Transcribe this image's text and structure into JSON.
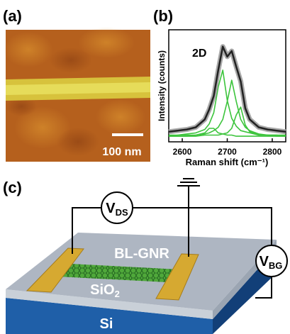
{
  "panel_a": {
    "label": "(a)",
    "scale_bar": "100 nm"
  },
  "chart_data": {
    "type": "line",
    "label": "(b)",
    "annotation": "2D",
    "x_label": "Raman shift (cm⁻¹)",
    "y_label": "Intensity (counts)",
    "x": [
      2570,
      2590,
      2610,
      2630,
      2650,
      2660,
      2670,
      2680,
      2690,
      2700,
      2710,
      2720,
      2730,
      2740,
      2750,
      2770,
      2790,
      2810,
      2830
    ],
    "series": [
      {
        "color": "#222222",
        "values": [
          0.09,
          0.1,
          0.11,
          0.13,
          0.2,
          0.29,
          0.41,
          0.64,
          0.85,
          0.76,
          0.81,
          0.67,
          0.54,
          0.3,
          0.2,
          0.13,
          0.11,
          0.1,
          0.09
        ]
      },
      {
        "color": "#3cc43c",
        "values": [
          0.05,
          0.05,
          0.05,
          0.06,
          0.08,
          0.12,
          0.12,
          0.08,
          0.07,
          0.06,
          0.06,
          0.05,
          0.05,
          0.05,
          0.05,
          0.05,
          0.05,
          0.05,
          0.05
        ]
      },
      {
        "color": "#3cc43c",
        "values": [
          0.06,
          0.06,
          0.07,
          0.08,
          0.11,
          0.16,
          0.26,
          0.49,
          0.64,
          0.37,
          0.21,
          0.14,
          0.1,
          0.09,
          0.08,
          0.06,
          0.06,
          0.06,
          0.06
        ]
      },
      {
        "color": "#3cc43c",
        "values": [
          0.05,
          0.06,
          0.06,
          0.06,
          0.07,
          0.08,
          0.1,
          0.13,
          0.2,
          0.36,
          0.55,
          0.36,
          0.2,
          0.13,
          0.1,
          0.07,
          0.06,
          0.06,
          0.05
        ]
      },
      {
        "color": "#3cc43c",
        "values": [
          0.05,
          0.05,
          0.05,
          0.05,
          0.06,
          0.06,
          0.06,
          0.06,
          0.07,
          0.08,
          0.12,
          0.24,
          0.31,
          0.15,
          0.09,
          0.06,
          0.06,
          0.05,
          0.05
        ]
      }
    ],
    "xlim": [
      2570,
      2830
    ],
    "ylim": [
      0,
      1
    ],
    "xticks": [
      2600,
      2700,
      2800
    ]
  },
  "panel_c": {
    "label": "(c)",
    "vds": {
      "main": "V",
      "sub": "DS"
    },
    "vbg": {
      "main": "V",
      "sub": "BG"
    },
    "channel": "BL-GNR",
    "oxide": {
      "main": "SiO",
      "sub": "2"
    },
    "substrate": "Si"
  }
}
